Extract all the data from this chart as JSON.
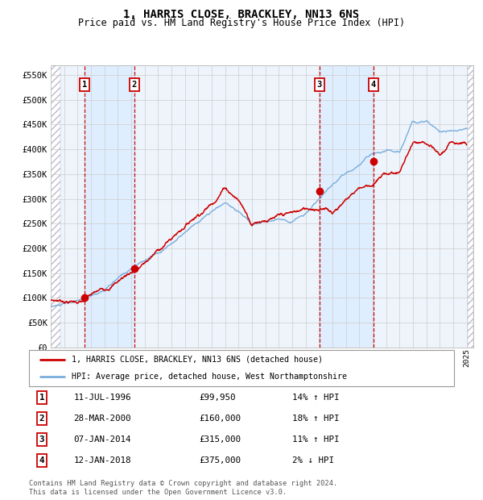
{
  "title": "1, HARRIS CLOSE, BRACKLEY, NN13 6NS",
  "subtitle": "Price paid vs. HM Land Registry's House Price Index (HPI)",
  "title_fontsize": 10,
  "subtitle_fontsize": 8.5,
  "ylabel_ticks": [
    "£0",
    "£50K",
    "£100K",
    "£150K",
    "£200K",
    "£250K",
    "£300K",
    "£350K",
    "£400K",
    "£450K",
    "£500K",
    "£550K"
  ],
  "ytick_values": [
    0,
    50000,
    100000,
    150000,
    200000,
    250000,
    300000,
    350000,
    400000,
    450000,
    500000,
    550000
  ],
  "ylim": [
    0,
    570000
  ],
  "xlim_start": 1994.0,
  "xlim_end": 2025.5,
  "sale_dates": [
    1996.53,
    2000.24,
    2014.03,
    2018.04
  ],
  "sale_prices": [
    99950,
    160000,
    315000,
    375000
  ],
  "sale_labels": [
    "1",
    "2",
    "3",
    "4"
  ],
  "sale_date_strings": [
    "11-JUL-1996",
    "28-MAR-2000",
    "07-JAN-2014",
    "12-JAN-2018"
  ],
  "sale_price_strings": [
    "£99,950",
    "£160,000",
    "£315,000",
    "£375,000"
  ],
  "sale_hpi_strings": [
    "14% ↑ HPI",
    "18% ↑ HPI",
    "11% ↑ HPI",
    "2% ↓ HPI"
  ],
  "legend_label_red": "1, HARRIS CLOSE, BRACKLEY, NN13 6NS (detached house)",
  "legend_label_blue": "HPI: Average price, detached house, West Northamptonshire",
  "footer": "Contains HM Land Registry data © Crown copyright and database right 2024.\nThis data is licensed under the Open Government Licence v3.0.",
  "red_color": "#cc0000",
  "blue_color": "#7aaedd",
  "sale_band_color": "#ddeeff",
  "grid_color": "#cccccc",
  "chart_bg": "#eef4fb"
}
